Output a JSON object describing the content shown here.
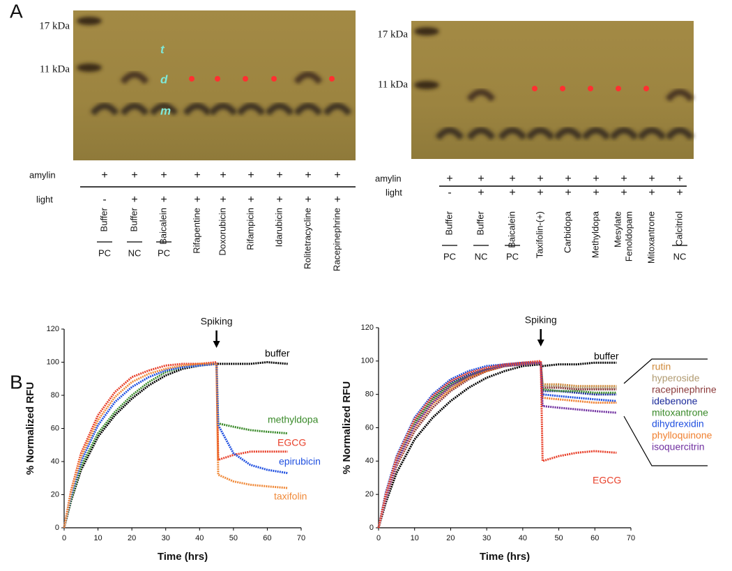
{
  "panel_a": {
    "label": "A",
    "gels": [
      {
        "markers": [
          "17 kDa",
          "11 kDa"
        ],
        "species": [
          "t",
          "d",
          "m"
        ],
        "row_labels": [
          "amylin",
          "light"
        ],
        "amylin": [
          "+",
          "+",
          "+",
          "+",
          "+",
          "+",
          "+",
          "+",
          "+"
        ],
        "light": [
          "-",
          "+",
          "+",
          "+",
          "+",
          "+",
          "+",
          "+",
          "+"
        ],
        "lanes": [
          [
            "Buffer"
          ],
          [
            "Buffer"
          ],
          [
            "Baicalein"
          ],
          [
            "Rifapentine"
          ],
          [
            "Doxorubicin"
          ],
          [
            "Rifampicin"
          ],
          [
            "Idarubicin"
          ],
          [
            "Rolitetracycline"
          ],
          [
            "Racepinephrine"
          ]
        ],
        "groups": [
          "PC",
          "NC",
          "PC",
          null,
          null,
          null,
          null,
          null,
          null
        ]
      },
      {
        "markers": [
          "17 kDa",
          "11 kDa"
        ],
        "row_labels": [
          "amylin",
          "light"
        ],
        "amylin": [
          "+",
          "+",
          "+",
          "+",
          "+",
          "+",
          "+",
          "+",
          "+"
        ],
        "light": [
          "-",
          "+",
          "+",
          "+",
          "+",
          "+",
          "+",
          "+",
          "+"
        ],
        "lanes": [
          [
            "Buffer"
          ],
          [
            "Buffer"
          ],
          [
            "Baicalein"
          ],
          [
            "Taxifolin-(+)"
          ],
          [
            "Carbidopa"
          ],
          [
            "Methyldopa"
          ],
          [
            "Fenoldopam",
            "Mesylate"
          ],
          [
            "Mitoxantrone"
          ],
          [
            "Calcitriol"
          ]
        ],
        "groups": [
          "PC",
          "NC",
          "PC",
          null,
          null,
          null,
          null,
          null,
          "NC"
        ]
      }
    ]
  },
  "panel_b": {
    "label": "B"
  },
  "chart_data": [
    {
      "type": "line",
      "y_label": "% Normalized RFU",
      "x_label": "Time (hrs)",
      "annotation": "Spiking",
      "xlim": [
        0,
        70
      ],
      "xticks": [
        0,
        10,
        20,
        30,
        40,
        50,
        60,
        70
      ],
      "ylim": [
        0,
        120
      ],
      "yticks": [
        0,
        20,
        40,
        60,
        80,
        100,
        120
      ],
      "x": [
        0,
        2,
        5,
        10,
        15,
        20,
        25,
        30,
        35,
        40,
        45,
        45.5,
        50,
        55,
        60,
        66
      ],
      "series": [
        {
          "name": "buffer",
          "color": "#000000",
          "values": [
            0,
            16,
            35,
            55,
            68,
            78,
            86,
            92,
            96,
            98,
            99,
            99,
            99,
            99,
            100,
            99
          ]
        },
        {
          "name": "methyldopa",
          "color": "#3a8a2a",
          "values": [
            0,
            17,
            37,
            57,
            70,
            80,
            88,
            94,
            97,
            98,
            99,
            63,
            61,
            59,
            58,
            57
          ]
        },
        {
          "name": "EGCG",
          "color": "#e8402a",
          "values": [
            0,
            22,
            45,
            68,
            82,
            91,
            95,
            98,
            99,
            99,
            100,
            41,
            44,
            46,
            46,
            46
          ]
        },
        {
          "name": "epirubicin",
          "color": "#2050e0",
          "values": [
            0,
            19,
            40,
            62,
            76,
            85,
            91,
            95,
            97,
            98,
            99,
            62,
            45,
            38,
            35,
            33
          ]
        },
        {
          "name": "taxifolin",
          "color": "#f08a3a",
          "values": [
            0,
            21,
            43,
            65,
            79,
            88,
            93,
            96,
            98,
            99,
            99,
            32,
            28,
            26,
            25,
            24
          ]
        }
      ]
    },
    {
      "type": "line",
      "y_label": "% Normalized RFU",
      "x_label": "Time (hrs)",
      "annotation": "Spiking",
      "xlim": [
        0,
        70
      ],
      "xticks": [
        0,
        10,
        20,
        30,
        40,
        50,
        60,
        70
      ],
      "ylim": [
        0,
        120
      ],
      "yticks": [
        0,
        20,
        40,
        60,
        80,
        100,
        120
      ],
      "x": [
        0,
        2,
        5,
        10,
        15,
        20,
        25,
        30,
        35,
        40,
        45,
        45.5,
        50,
        55,
        60,
        66
      ],
      "series": [
        {
          "name": "buffer",
          "color": "#000000",
          "values": [
            0,
            15,
            33,
            53,
            66,
            76,
            84,
            90,
            94,
            97,
            98,
            97,
            98,
            98,
            99,
            99
          ]
        },
        {
          "name": "rutin",
          "color": "#d08a3a",
          "values": [
            0,
            19,
            40,
            62,
            76,
            85,
            91,
            95,
            97,
            99,
            99,
            86,
            86,
            85,
            85,
            85
          ]
        },
        {
          "name": "hyperoside",
          "color": "#b09a70",
          "values": [
            0,
            18,
            39,
            61,
            75,
            84,
            90,
            94,
            97,
            98,
            99,
            85,
            85,
            84,
            84,
            84
          ]
        },
        {
          "name": "racepinephrine",
          "color": "#8b3a3a",
          "values": [
            0,
            17,
            37,
            58,
            72,
            82,
            89,
            94,
            97,
            98,
            99,
            84,
            84,
            83,
            83,
            83
          ]
        },
        {
          "name": "idebenone",
          "color": "#1a2a9a",
          "values": [
            0,
            20,
            42,
            64,
            78,
            87,
            92,
            95,
            97,
            98,
            99,
            82,
            82,
            81,
            80,
            80
          ]
        },
        {
          "name": "mitoxantrone",
          "color": "#3a8a2a",
          "values": [
            0,
            19,
            41,
            63,
            77,
            86,
            91,
            95,
            97,
            98,
            99,
            83,
            82,
            82,
            81,
            81
          ]
        },
        {
          "name": "dihydrexidin",
          "color": "#2050e0",
          "values": [
            0,
            21,
            43,
            66,
            80,
            89,
            94,
            97,
            98,
            99,
            99,
            80,
            79,
            78,
            77,
            76
          ]
        },
        {
          "name": "phylloquinone",
          "color": "#f08030",
          "values": [
            0,
            18,
            38,
            60,
            74,
            83,
            90,
            94,
            97,
            98,
            99,
            78,
            77,
            76,
            75,
            75
          ]
        },
        {
          "name": "isoquercitrin",
          "color": "#7030a0",
          "values": [
            0,
            18,
            39,
            61,
            75,
            85,
            91,
            95,
            97,
            98,
            99,
            73,
            72,
            71,
            70,
            69
          ]
        },
        {
          "name": "EGCG",
          "color": "#e8402a",
          "values": [
            0,
            20,
            42,
            65,
            79,
            88,
            93,
            96,
            98,
            99,
            100,
            40,
            43,
            45,
            46,
            45
          ]
        }
      ]
    }
  ]
}
